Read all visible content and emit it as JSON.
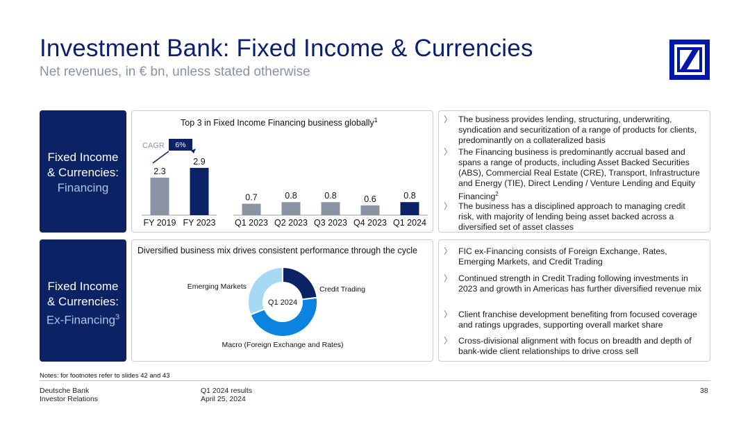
{
  "header": {
    "title": "Investment Bank: Fixed Income & Currencies",
    "subtitle": "Net revenues, in € bn, unless stated otherwise"
  },
  "financing": {
    "side_line1": "Fixed Income",
    "side_line2": "& Currencies:",
    "side_line3": "Financing",
    "chart_title": "Top 3 in Fixed Income Financing business globally",
    "chart_title_sup": "1",
    "cagr_label": "CAGR",
    "cagr_value": "6%",
    "bullets": [
      {
        "chev": "〉",
        "text": "The business provides lending, structuring, underwriting, syndication and securitization of a range of products for clients, predominantly on a collateralized basis",
        "sup": ""
      },
      {
        "chev": "〉",
        "text": "The Financing business is predominantly accrual based and spans a range of products, including Asset Backed Securities (ABS), Commercial Real Estate (CRE), Transport, Infrastructure and Energy (TIE), Direct Lending / Venture Lending and Equity Financing",
        "sup": "2"
      },
      {
        "chev": "〉",
        "text": "The business has a disciplined approach to managing credit risk, with majority of lending being asset backed across a diversified set of asset classes",
        "sup": ""
      }
    ]
  },
  "exfinancing": {
    "side_line1": "Fixed Income",
    "side_line2": "& Currencies:",
    "side_line3": "Ex-Financing",
    "side_sup": "3",
    "chart_title": "Diversified business mix drives consistent performance through the cycle",
    "donut_center": "Q1 2024",
    "bullets": [
      {
        "chev": "〉",
        "text": "FIC ex-Financing consists of Foreign Exchange, Rates, Emerging Markets, and Credit Trading"
      },
      {
        "chev": "〉",
        "text": "Continued strength in Credit Trading following investments in 2023 and growth in Americas has further diversified revenue mix"
      },
      {
        "chev": "〉",
        "text": "Client franchise development benefiting from focused coverage and ratings upgrades, supporting overall market share"
      },
      {
        "chev": "〉",
        "text": "Cross-divisional alignment with focus on breadth and depth of bank-wide client relationships to drive cross sell"
      }
    ]
  },
  "chart_data": [
    {
      "type": "bar",
      "title": "Top 3 in Fixed Income Financing business globally",
      "categories": [
        "FY 2019",
        "FY 2023",
        "Q1 2023",
        "Q2 2023",
        "Q3 2023",
        "Q4 2023",
        "Q1 2024"
      ],
      "values": [
        2.3,
        2.9,
        0.7,
        0.8,
        0.8,
        0.6,
        0.8
      ],
      "value_labels": [
        "2.3",
        "2.9",
        "0.7",
        "0.8",
        "0.8",
        "0.6",
        "0.8"
      ],
      "highlight": [
        "FY 2023",
        "Q1 2024"
      ],
      "groups": [
        [
          "FY 2019",
          "FY 2023"
        ],
        [
          "Q1 2023",
          "Q2 2023",
          "Q3 2023",
          "Q4 2023",
          "Q1 2024"
        ]
      ],
      "annotation": {
        "label": "CAGR",
        "value": "6%"
      },
      "colors": {
        "base": "#8a93a4",
        "highlight": "#0b2265"
      }
    },
    {
      "type": "pie",
      "title": "Diversified business mix drives consistent performance through the cycle",
      "center_label": "Q1 2024",
      "slices": [
        {
          "label": "Credit Trading",
          "value": 0.23,
          "color": "#0b2265"
        },
        {
          "label": "Macro (Foreign Exchange and Rates)",
          "value": 0.46,
          "color": "#0a84de"
        },
        {
          "label": "Emerging Markets",
          "value": 0.31,
          "color": "#a6d9f3"
        }
      ]
    }
  ],
  "notes": "Notes: for footnotes refer to slides 42 and 43",
  "footer": {
    "company": "Deutsche Bank",
    "dept": "Investor Relations",
    "report": "Q1 2024 results",
    "date": "April 25, 2024",
    "page": "38"
  }
}
